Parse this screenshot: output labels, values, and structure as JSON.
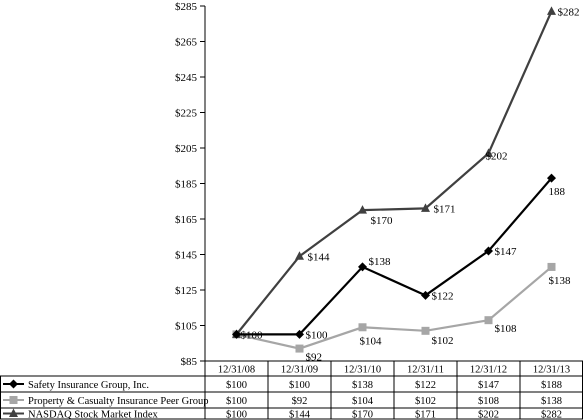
{
  "chart_data": {
    "type": "line",
    "categories": [
      "12/31/08",
      "12/31/09",
      "12/31/10",
      "12/31/11",
      "12/31/12",
      "12/31/13"
    ],
    "y_ticks": [
      "$85",
      "$105",
      "$125",
      "$145",
      "$165",
      "$185",
      "$205",
      "$225",
      "$245",
      "$265",
      "$285"
    ],
    "ylim": [
      85,
      285
    ],
    "grid": false,
    "legend": "table-bottom",
    "series": [
      {
        "name": "Safety Insurance Group, Inc.",
        "values": [
          100,
          100,
          138,
          122,
          147,
          188
        ],
        "point_labels": [
          "$100",
          "$100",
          "$138",
          "$122",
          "$147",
          "188"
        ],
        "table_values": [
          "$100",
          "$100",
          "$138",
          "$122",
          "$147",
          "$188"
        ],
        "color": "#000000",
        "marker": "diamond"
      },
      {
        "name": "Property & Casualty Insurance Peer Group",
        "values": [
          100,
          92,
          104,
          102,
          108,
          138
        ],
        "point_labels": [
          "",
          "$92",
          "$104",
          "$102",
          "$108",
          "$138"
        ],
        "table_values": [
          "$100",
          "$92",
          "$104",
          "$102",
          "$108",
          "$138"
        ],
        "color": "#a6a6a6",
        "marker": "square"
      },
      {
        "name": "NASDAQ Stock Market Index",
        "values": [
          100,
          144,
          170,
          171,
          202,
          282
        ],
        "point_labels": [
          "",
          "$144",
          "$170",
          "$171",
          "$202",
          "$282"
        ],
        "table_values": [
          "$100",
          "$144",
          "$170",
          "$171",
          "$202",
          "$282"
        ],
        "color": "#404040",
        "marker": "triangle"
      }
    ]
  }
}
